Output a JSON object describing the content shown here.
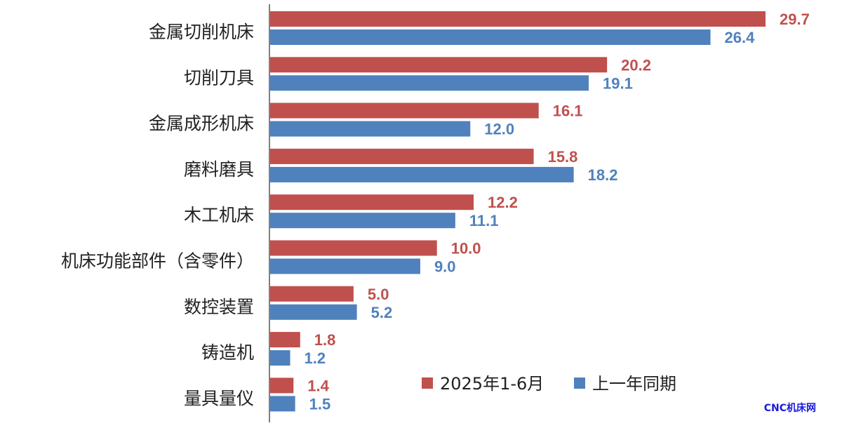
{
  "chart_data": {
    "type": "bar",
    "orientation": "horizontal",
    "categories": [
      "金属切削机床",
      "切削刀具",
      "金属成形机床",
      "磨料磨具",
      "木工机床",
      "机床功能部件（含零件）",
      "数控装置",
      "铸造机",
      "量具量仪"
    ],
    "series": [
      {
        "name": "2025年1-6月",
        "values": [
          29.7,
          20.2,
          16.1,
          15.8,
          12.2,
          10.0,
          5.0,
          1.8,
          1.4
        ],
        "labels": [
          "29.7",
          "20.2",
          "16.1",
          "15.8",
          "12.2",
          "10.0",
          "5.0",
          "1.8",
          "1.4"
        ],
        "color": "#C0504D"
      },
      {
        "name": "上一年同期",
        "values": [
          26.4,
          19.1,
          12.0,
          18.2,
          11.1,
          9.0,
          5.2,
          1.2,
          1.5
        ],
        "labels": [
          "26.4",
          "19.1",
          "12.0",
          "18.2",
          "11.1",
          "9.0",
          "5.2",
          "1.2",
          "1.5"
        ],
        "color": "#4F81BD"
      }
    ],
    "xlim": [
      0,
      30
    ],
    "grid": false,
    "legend_position": "bottom-right"
  },
  "watermark": {
    "text": "CNC机床网",
    "color": "#1a1adc"
  },
  "axis_color": "#808080"
}
